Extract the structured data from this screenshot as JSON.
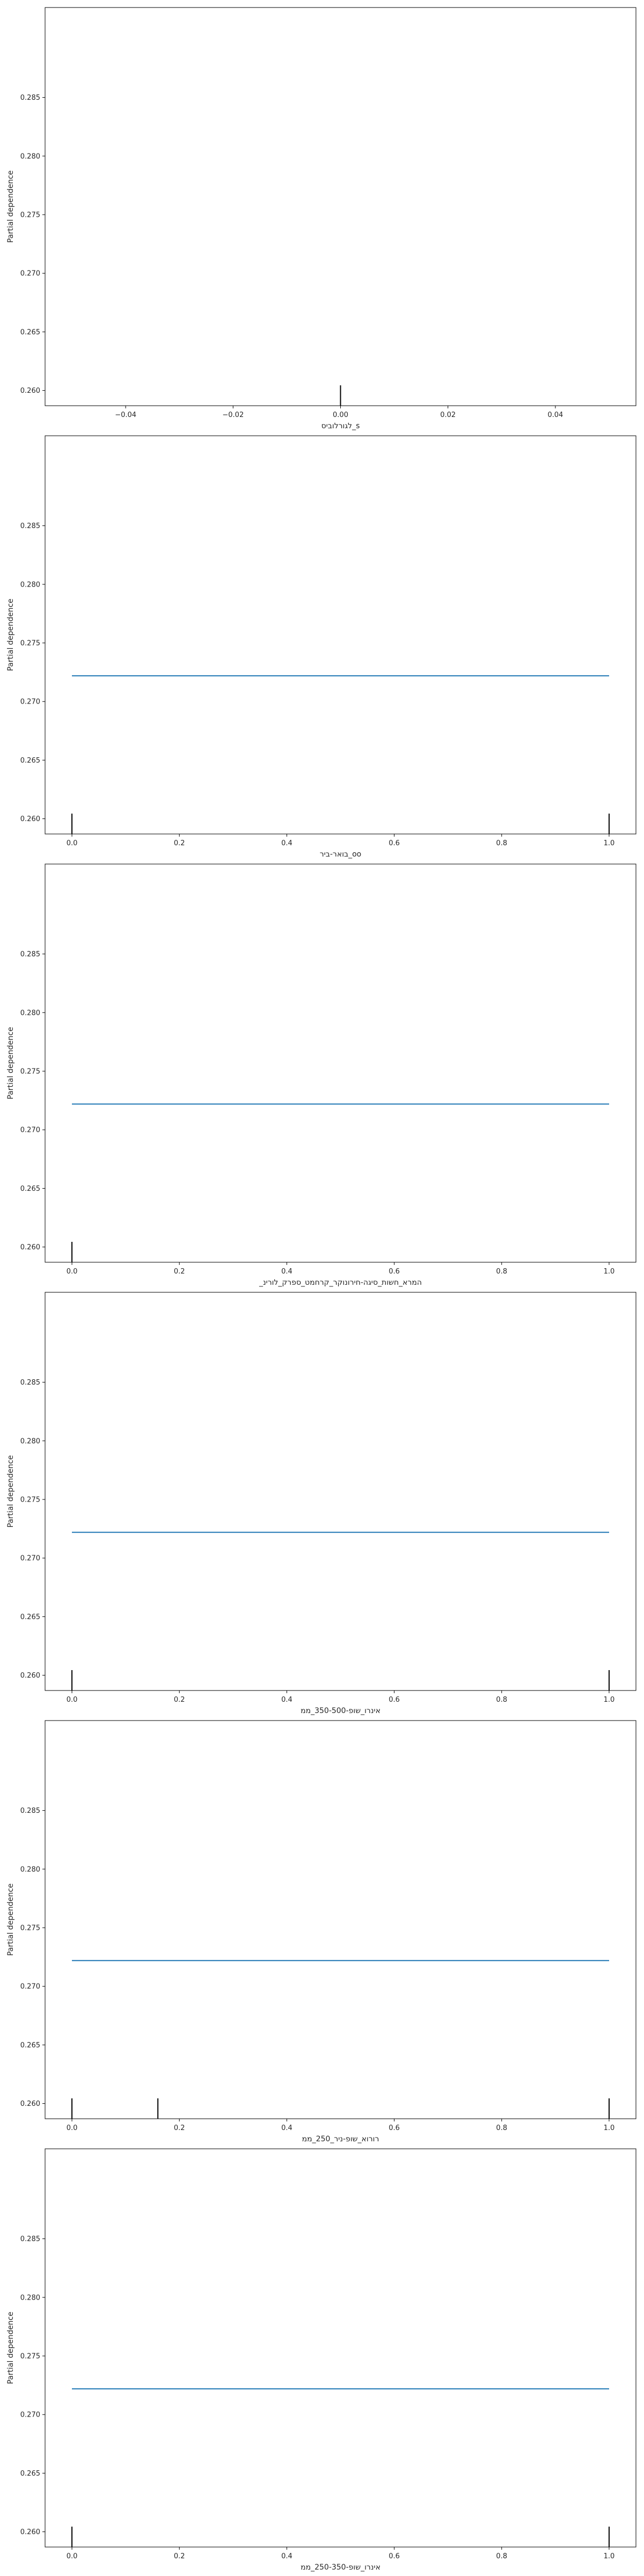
{
  "chart_data": [
    {
      "type": "line",
      "xlabel": "לגורלוביס_s",
      "ylabel": "Partial dependence",
      "xlim": [
        -0.055,
        0.055
      ],
      "ylim": [
        0.2587,
        0.2857
      ],
      "xticks": [
        -0.04,
        -0.02,
        0.0,
        0.02,
        0.04
      ],
      "xtick_labels": [
        "−0.04",
        "−0.02",
        "0.00",
        "0.02",
        "0.04"
      ],
      "yticks": [
        0.26,
        0.265,
        0.27,
        0.275,
        0.28,
        0.285
      ],
      "ytick_labels": [
        "0.260",
        "0.265",
        "0.270",
        "0.275",
        "0.280",
        "0.285"
      ],
      "series": [],
      "deciles": [
        0.0
      ],
      "line_color": "#1f77b4",
      "grid": false
    },
    {
      "type": "line",
      "xlabel": "בואר-ביר_oo",
      "ylabel": "Partial dependence",
      "xlim": [
        -0.05,
        1.05
      ],
      "ylim": [
        0.2587,
        0.2857
      ],
      "xticks": [
        0.0,
        0.2,
        0.4,
        0.6,
        0.8,
        1.0
      ],
      "xtick_labels": [
        "0.0",
        "0.2",
        "0.4",
        "0.6",
        "0.8",
        "1.0"
      ],
      "yticks": [
        0.26,
        0.265,
        0.27,
        0.275,
        0.28,
        0.285
      ],
      "ytick_labels": [
        "0.260",
        "0.265",
        "0.270",
        "0.275",
        "0.280",
        "0.285"
      ],
      "series": [
        {
          "x": [
            0.0,
            1.0
          ],
          "y": [
            0.2722,
            0.2722
          ]
        }
      ],
      "deciles": [
        0.0,
        1.0
      ],
      "line_color": "#1f77b4",
      "grid": false
    },
    {
      "type": "line",
      "xlabel": "_המרא_חשות_סיגה-חירונוקר_קרחמט_ספרק_לורינ",
      "ylabel": "Partial dependence",
      "xlim": [
        -0.05,
        1.05
      ],
      "ylim": [
        0.2587,
        0.2857
      ],
      "xticks": [
        0.0,
        0.2,
        0.4,
        0.6,
        0.8,
        1.0
      ],
      "xtick_labels": [
        "0.0",
        "0.2",
        "0.4",
        "0.6",
        "0.8",
        "1.0"
      ],
      "yticks": [
        0.26,
        0.265,
        0.27,
        0.275,
        0.28,
        0.285
      ],
      "ytick_labels": [
        "0.260",
        "0.265",
        "0.270",
        "0.275",
        "0.280",
        "0.285"
      ],
      "series": [
        {
          "x": [
            0.0,
            1.0
          ],
          "y": [
            0.2722,
            0.2722
          ]
        }
      ],
      "deciles": [
        0.0
      ],
      "line_color": "#1f77b4",
      "grid": false
    },
    {
      "type": "line",
      "xlabel": "אינרו_שופ-350-500_ממ",
      "ylabel": "Partial dependence",
      "xlim": [
        -0.05,
        1.05
      ],
      "ylim": [
        0.2587,
        0.2857
      ],
      "xticks": [
        0.0,
        0.2,
        0.4,
        0.6,
        0.8,
        1.0
      ],
      "xtick_labels": [
        "0.0",
        "0.2",
        "0.4",
        "0.6",
        "0.8",
        "1.0"
      ],
      "yticks": [
        0.26,
        0.265,
        0.27,
        0.275,
        0.28,
        0.285
      ],
      "ytick_labels": [
        "0.260",
        "0.265",
        "0.270",
        "0.275",
        "0.280",
        "0.285"
      ],
      "series": [
        {
          "x": [
            0.0,
            1.0
          ],
          "y": [
            0.2722,
            0.2722
          ]
        }
      ],
      "deciles": [
        0.0,
        1.0
      ],
      "line_color": "#1f77b4",
      "grid": false
    },
    {
      "type": "line",
      "xlabel": "רורוא_שופ-ניר_250_ממ",
      "ylabel": "Partial dependence",
      "xlim": [
        -0.05,
        1.05
      ],
      "ylim": [
        0.2587,
        0.2857
      ],
      "xticks": [
        0.0,
        0.2,
        0.4,
        0.6,
        0.8,
        1.0
      ],
      "xtick_labels": [
        "0.0",
        "0.2",
        "0.4",
        "0.6",
        "0.8",
        "1.0"
      ],
      "yticks": [
        0.26,
        0.265,
        0.27,
        0.275,
        0.28,
        0.285
      ],
      "ytick_labels": [
        "0.260",
        "0.265",
        "0.270",
        "0.275",
        "0.280",
        "0.285"
      ],
      "series": [
        {
          "x": [
            0.0,
            1.0
          ],
          "y": [
            0.2722,
            0.2722
          ]
        }
      ],
      "deciles": [
        0.0,
        0.16,
        1.0
      ],
      "line_color": "#1f77b4",
      "grid": false
    },
    {
      "type": "line",
      "xlabel": "אינרו_שופ-250-350_ממ",
      "ylabel": "Partial dependence",
      "xlim": [
        -0.05,
        1.05
      ],
      "ylim": [
        0.2587,
        0.2857
      ],
      "xticks": [
        0.0,
        0.2,
        0.4,
        0.6,
        0.8,
        1.0
      ],
      "xtick_labels": [
        "0.0",
        "0.2",
        "0.4",
        "0.6",
        "0.8",
        "1.0"
      ],
      "yticks": [
        0.26,
        0.265,
        0.27,
        0.275,
        0.28,
        0.285
      ],
      "ytick_labels": [
        "0.260",
        "0.265",
        "0.270",
        "0.275",
        "0.280",
        "0.285"
      ],
      "series": [
        {
          "x": [
            0.0,
            1.0
          ],
          "y": [
            0.2722,
            0.2722
          ]
        }
      ],
      "deciles": [
        0.0,
        1.0
      ],
      "line_color": "#1f77b4",
      "grid": false
    }
  ]
}
